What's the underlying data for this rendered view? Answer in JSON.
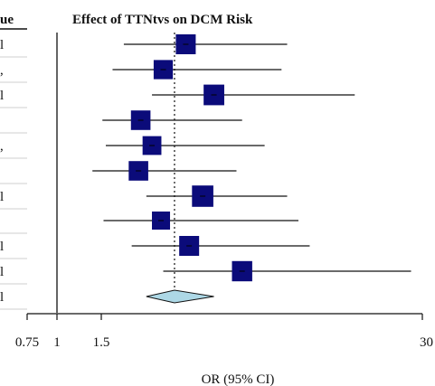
{
  "colors": {
    "square": "#0b0b7a",
    "diamond": "#add8e6",
    "line": "#111111"
  },
  "chart_data": {
    "type": "forest",
    "title": "Effect of TTNtvs on DCM Risk",
    "xlabel": "OR (95% CI)",
    "left_header_fragment": "ue",
    "left_column_fragments": [
      "l",
      ",",
      "l",
      "",
      ",",
      "",
      "l",
      "",
      "l",
      "l",
      "l"
    ],
    "x_tick_labels": [
      "0.75",
      "1",
      "1.5",
      "30"
    ],
    "studies": [
      {
        "or": 9.0,
        "lower": 3.5,
        "upper": 18.0,
        "weight": 1.0
      },
      {
        "or": 7.0,
        "lower": 2.5,
        "upper": 17.5,
        "weight": 0.9
      },
      {
        "or": 11.5,
        "lower": 6.0,
        "upper": 24.0,
        "weight": 1.1
      },
      {
        "or": 5.0,
        "lower": 1.6,
        "upper": 14.0,
        "weight": 0.95
      },
      {
        "or": 6.0,
        "lower": 1.9,
        "upper": 16.0,
        "weight": 0.85
      },
      {
        "or": 4.8,
        "lower": 1.4,
        "upper": 13.5,
        "weight": 0.95
      },
      {
        "or": 10.5,
        "lower": 5.5,
        "upper": 18.0,
        "weight": 1.2
      },
      {
        "or": 6.8,
        "lower": 1.7,
        "upper": 19.0,
        "weight": 0.75
      },
      {
        "or": 9.3,
        "lower": 4.2,
        "upper": 20.0,
        "weight": 1.0
      },
      {
        "or": 14.0,
        "lower": 7.0,
        "upper": 29.0,
        "weight": 1.05
      }
    ],
    "summary": {
      "or": 8.0,
      "lower": 5.5,
      "upper": 11.5
    },
    "null_value": 1,
    "reference_line_value": 8.0
  }
}
